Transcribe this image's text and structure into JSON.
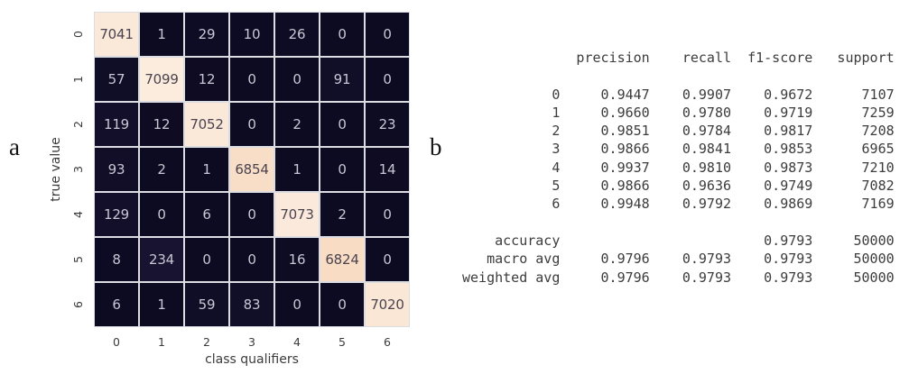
{
  "panels": {
    "a": {
      "label": "a"
    },
    "b": {
      "label": "b"
    }
  },
  "chart_data": [
    {
      "type": "heatmap",
      "panel": "a",
      "title": "",
      "xlabel": "class qualifiers",
      "ylabel": "true value",
      "x_tick_labels": [
        "0",
        "1",
        "2",
        "3",
        "4",
        "5",
        "6"
      ],
      "y_tick_labels": [
        "0",
        "1",
        "2",
        "3",
        "4",
        "5",
        "6"
      ],
      "matrix": [
        [
          7041,
          1,
          29,
          10,
          26,
          0,
          0
        ],
        [
          57,
          7099,
          12,
          0,
          0,
          91,
          0
        ],
        [
          119,
          12,
          7052,
          0,
          2,
          0,
          23
        ],
        [
          93,
          2,
          1,
          6854,
          1,
          0,
          14
        ],
        [
          129,
          0,
          6,
          0,
          7073,
          2,
          0
        ],
        [
          8,
          234,
          0,
          0,
          16,
          6824,
          0
        ],
        [
          6,
          1,
          59,
          83,
          0,
          0,
          7020
        ]
      ],
      "value_range": [
        0,
        7099
      ],
      "colormap": "rocket",
      "colors": {
        "cmap_dark_low": "#0d0b22",
        "cmap_dark_high": "#231a3f",
        "cmap_light_low": "#f8dcc3",
        "cmap_light_high": "#fbecde",
        "text_on_dark": "#c9c7d3",
        "text_on_light": "#4a4350",
        "grid_line": "#dcdce3",
        "axis_text": "#3b3b3b"
      }
    },
    {
      "type": "table",
      "panel": "b",
      "columns": [
        "precision",
        "recall",
        "f1-score",
        "support"
      ],
      "class_rows": [
        {
          "label": "0",
          "precision": "0.9447",
          "recall": "0.9907",
          "f1_score": "0.9672",
          "support": "7107"
        },
        {
          "label": "1",
          "precision": "0.9660",
          "recall": "0.9780",
          "f1_score": "0.9719",
          "support": "7259"
        },
        {
          "label": "2",
          "precision": "0.9851",
          "recall": "0.9784",
          "f1_score": "0.9817",
          "support": "7208"
        },
        {
          "label": "3",
          "precision": "0.9866",
          "recall": "0.9841",
          "f1_score": "0.9853",
          "support": "6965"
        },
        {
          "label": "4",
          "precision": "0.9937",
          "recall": "0.9810",
          "f1_score": "0.9873",
          "support": "7210"
        },
        {
          "label": "5",
          "precision": "0.9866",
          "recall": "0.9636",
          "f1_score": "0.9749",
          "support": "7082"
        },
        {
          "label": "6",
          "precision": "0.9948",
          "recall": "0.9792",
          "f1_score": "0.9869",
          "support": "7169"
        }
      ],
      "summary_rows": [
        {
          "label": "accuracy",
          "precision": "",
          "recall": "",
          "f1_score": "0.9793",
          "support": "50000"
        },
        {
          "label": "macro avg",
          "precision": "0.9796",
          "recall": "0.9793",
          "f1_score": "0.9793",
          "support": "50000"
        },
        {
          "label": "weighted avg",
          "precision": "0.9796",
          "recall": "0.9793",
          "f1_score": "0.9793",
          "support": "50000"
        }
      ],
      "text_color": "#3c3c3c"
    }
  ]
}
